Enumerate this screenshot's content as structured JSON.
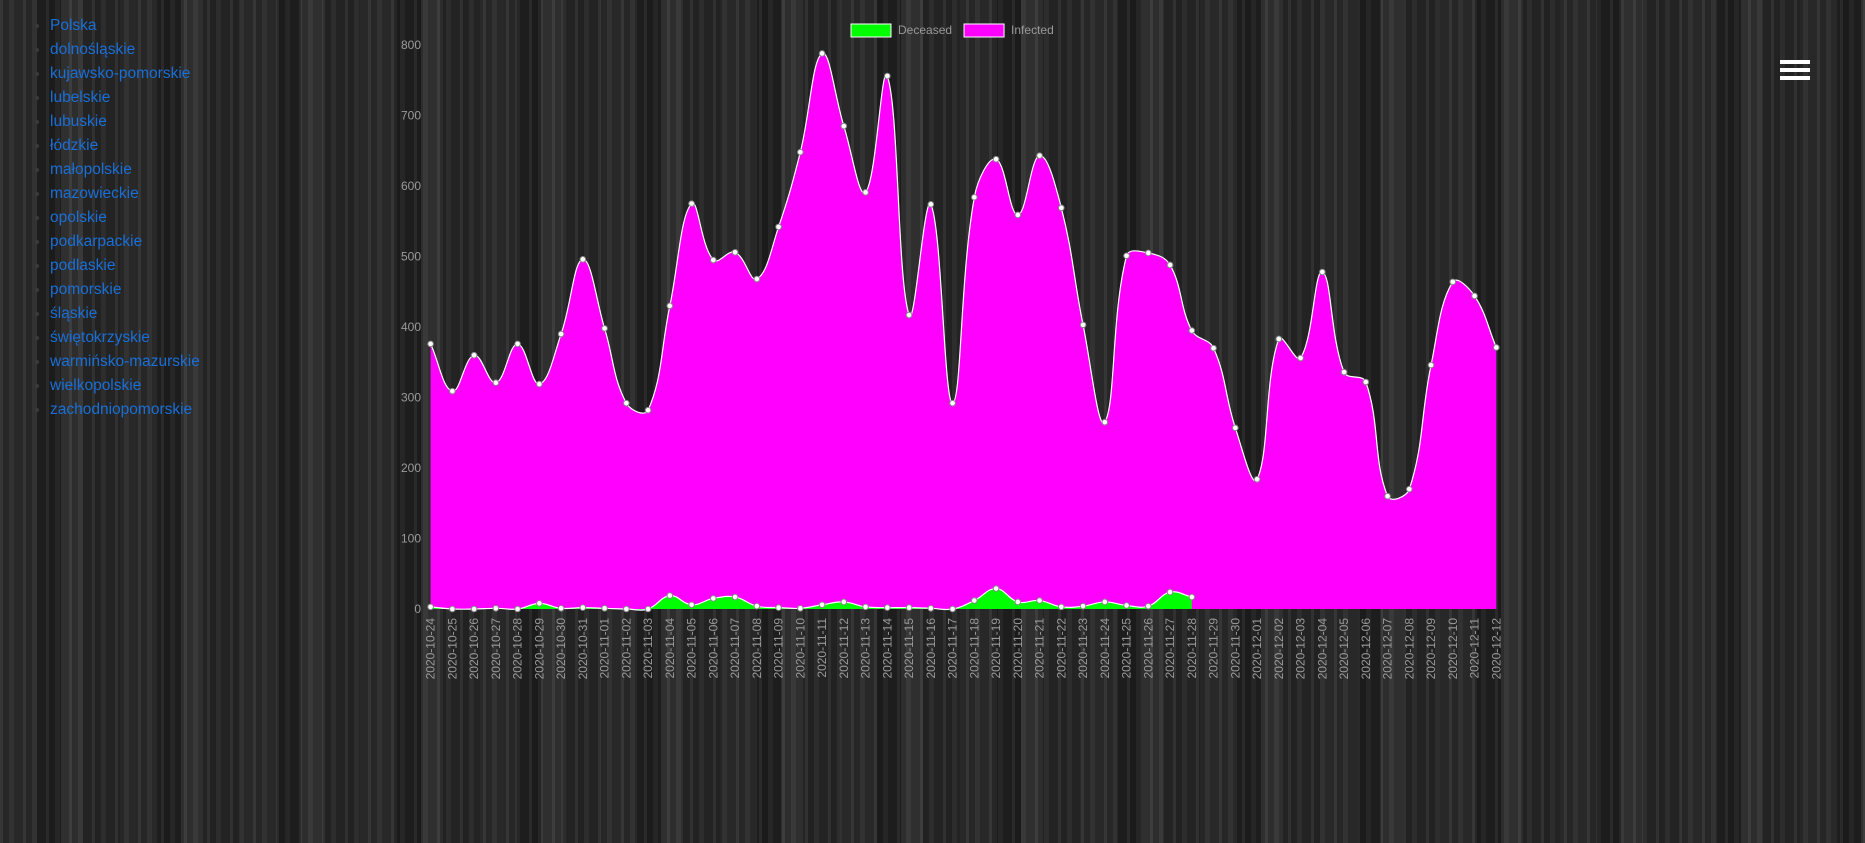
{
  "nav": {
    "items": [
      "Polska",
      "dolnośląskie",
      "kujawsko-pomorskie",
      "lubelskie",
      "lubuskie",
      "łódzkie",
      "małopolskie",
      "mazowieckie",
      "opolskie",
      "podkarpackie",
      "podlaskie",
      "pomorskie",
      "śląskie",
      "świętokrzyskie",
      "warmińsko-mazurskie",
      "wielkopolskie",
      "zachodniopomorskie"
    ]
  },
  "chart_data": {
    "type": "area",
    "x": [
      "2020-10-24",
      "2020-10-25",
      "2020-10-26",
      "2020-10-27",
      "2020-10-28",
      "2020-10-29",
      "2020-10-30",
      "2020-10-31",
      "2020-11-01",
      "2020-11-02",
      "2020-11-03",
      "2020-11-04",
      "2020-11-05",
      "2020-11-06",
      "2020-11-07",
      "2020-11-08",
      "2020-11-09",
      "2020-11-10",
      "2020-11-11",
      "2020-11-12",
      "2020-11-13",
      "2020-11-14",
      "2020-11-15",
      "2020-11-16",
      "2020-11-17",
      "2020-11-18",
      "2020-11-19",
      "2020-11-20",
      "2020-11-21",
      "2020-11-22",
      "2020-11-23",
      "2020-11-24",
      "2020-11-25",
      "2020-11-26",
      "2020-11-27",
      "2020-11-28",
      "2020-11-29",
      "2020-11-30",
      "2020-12-01",
      "2020-12-02",
      "2020-12-03",
      "2020-12-04",
      "2020-12-05",
      "2020-12-06",
      "2020-12-07",
      "2020-12-08",
      "2020-12-09",
      "2020-12-10",
      "2020-12-11",
      "2020-12-12"
    ],
    "series": [
      {
        "name": "Deceased",
        "color": "#00ff00",
        "values": [
          3,
          0,
          0,
          1,
          0,
          8,
          1,
          2,
          1,
          0,
          0,
          19,
          6,
          15,
          17,
          4,
          2,
          1,
          6,
          10,
          3,
          2,
          2,
          1,
          0,
          12,
          29,
          10,
          12,
          3,
          4,
          10,
          5,
          4,
          24,
          17,
          null,
          null,
          null,
          null,
          null,
          null,
          null,
          null,
          null,
          null,
          null,
          null,
          null,
          null
        ]
      },
      {
        "name": "Infected",
        "color": "#ff00ff",
        "values": [
          376,
          309,
          360,
          321,
          376,
          319,
          390,
          496,
          398,
          292,
          282,
          430,
          575,
          495,
          506,
          468,
          542,
          648,
          788,
          685,
          591,
          756,
          417,
          574,
          292,
          584,
          638,
          559,
          643,
          569,
          403,
          265,
          501,
          505,
          488,
          395,
          370,
          257,
          184,
          383,
          356,
          478,
          336,
          322,
          160,
          170,
          346,
          464,
          444,
          371
        ]
      }
    ],
    "ylim": [
      0,
      800
    ],
    "yticks": [
      0,
      100,
      200,
      300,
      400,
      500,
      600,
      700,
      800
    ],
    "grid": false,
    "legend": "top"
  }
}
